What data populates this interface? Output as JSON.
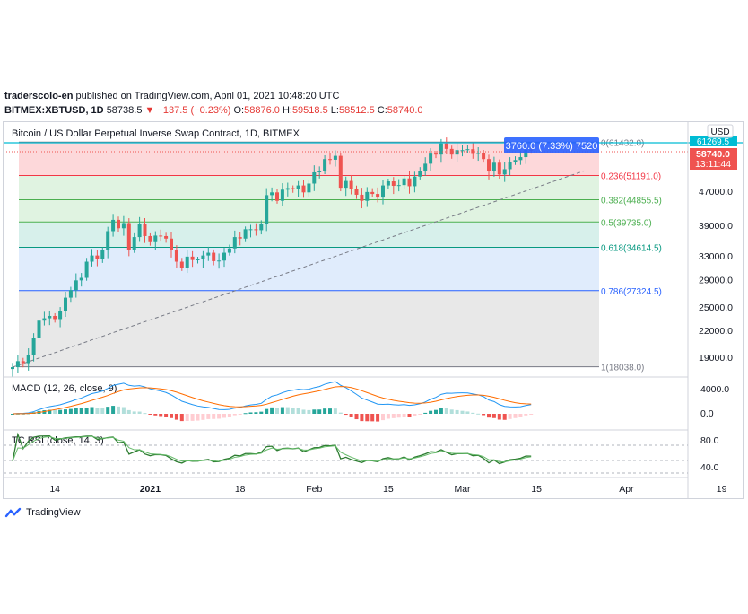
{
  "header": {
    "publisher": "traderscolo-en",
    "published_text": " published on TradingView.com, April 01, 2021 10:48:20 UTC",
    "symbol": "BITMEX:XBTUSD, 1D",
    "last": "58738.5",
    "change": "−137.5 (−0.23%)",
    "o_label": "O:",
    "o": "58876.0",
    "h_label": "H:",
    "h": "59518.5",
    "l_label": "L:",
    "l": "58512.5",
    "c_label": "C:",
    "c": "58740.0"
  },
  "chart_data": [
    {
      "type": "candlestick",
      "title": "Bitcoin / US Dollar Perpetual Inverse Swap Contract, 1D, BITMEX",
      "currency": "USD",
      "price_scale": "log",
      "ylim": [
        17000,
        63000
      ],
      "y_ticks": [
        19000,
        22000,
        25000,
        29000,
        33000,
        39000,
        47000
      ],
      "x_ticks": [
        "14",
        "2021",
        "18",
        "Feb",
        "15",
        "Mar",
        "15",
        "Apr",
        "19"
      ],
      "last_price_label": "58740.0",
      "countdown_label": "13:11:44",
      "top_price_label": "61269.5",
      "fibonacci": [
        {
          "level": "0",
          "price": "61432.0",
          "color": "#787b86"
        },
        {
          "level": "0.236",
          "price": "51191.0",
          "color": "#f23645"
        },
        {
          "level": "0.382",
          "price": "44855.5",
          "color": "#4caf50"
        },
        {
          "level": "0.5",
          "price": "39735.0",
          "color": "#4caf50"
        },
        {
          "level": "0.618",
          "price": "34614.5",
          "color": "#089981"
        },
        {
          "level": "0.786",
          "price": "27324.5",
          "color": "#2962ff"
        },
        {
          "level": "1",
          "price": "18038.0",
          "color": "#787b86"
        }
      ],
      "measure_label": "3760.0 (7.33%) 7520",
      "trendline": {
        "from": [
          "2020-12-06",
          18000
        ],
        "to": [
          "2021-03-24",
          52500
        ]
      },
      "up_color": "#26a69a",
      "down_color": "#ef5350",
      "candles_approx_close": [
        18000,
        18600,
        18400,
        19200,
        21100,
        23200,
        23500,
        23800,
        23400,
        24400,
        26300,
        27400,
        28900,
        29300,
        32000,
        33100,
        32400,
        34100,
        37800,
        40200,
        38400,
        39500,
        34100,
        36600,
        39400,
        36800,
        35600,
        36900,
        36800,
        36300,
        34100,
        32000,
        30900,
        32900,
        32300,
        32400,
        33100,
        33600,
        32100,
        32200,
        33600,
        34400,
        36600,
        36300,
        38200,
        38200,
        38000,
        39400,
        46000,
        46700,
        44600,
        47400,
        47800,
        47500,
        48500,
        46700,
        49000,
        52100,
        52400,
        56000,
        55800,
        57000,
        47900,
        49700,
        47600,
        46100,
        44600,
        46800,
        46300,
        45400,
        48500,
        49600,
        48400,
        48600,
        50400,
        48300,
        50900,
        52500,
        54600,
        57700,
        57400,
        61000,
        59200,
        57400,
        58800,
        58800,
        59100,
        57600,
        58000,
        56000,
        52400,
        54900,
        51500,
        53000,
        55100,
        55700,
        56600,
        58900,
        58800
      ]
    },
    {
      "type": "line",
      "title": "MACD (12, 26, close, 9)",
      "series": [
        {
          "name": "MACD"
        },
        {
          "name": "Signal"
        },
        {
          "name": "Histogram"
        }
      ],
      "y_ticks": [
        "4000.0",
        "0.0"
      ]
    },
    {
      "type": "line",
      "title": "TC RSI (close, 14, 3)",
      "y_ticks": [
        "80.0",
        "40.0"
      ]
    }
  ],
  "footer": {
    "brand": "TradingView"
  }
}
